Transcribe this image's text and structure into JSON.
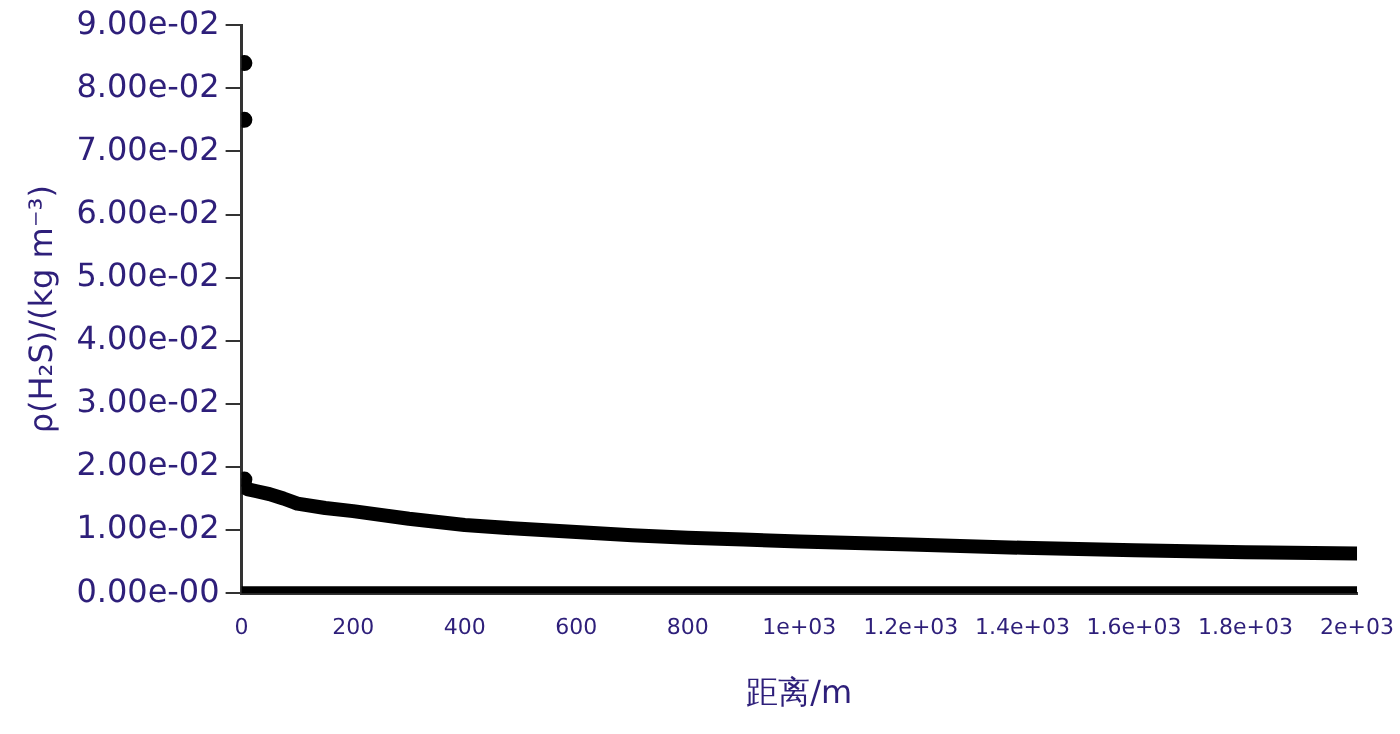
{
  "chart_data": {
    "type": "scatter",
    "xlabel": "距离/m",
    "ylabel": "ρ(H₂S)/(kg m⁻³)",
    "xlim": [
      0,
      2000
    ],
    "xticks": [
      0,
      200,
      400,
      600,
      800,
      {
        "value": 1000,
        "label": "1e+03"
      },
      {
        "value": 1200,
        "label": "1.2e+03"
      },
      {
        "value": 1400,
        "label": "1.4e+03"
      },
      {
        "value": 1600,
        "label": "1.6e+03"
      },
      {
        "value": 1800,
        "label": "1.8e+03"
      },
      {
        "value": 2000,
        "label": "2e+03"
      }
    ],
    "ylim": [
      0,
      0.09
    ],
    "yticks": [
      {
        "value": 0,
        "label": "0.00e-00"
      },
      {
        "value": 0.01,
        "label": "1.00e-02"
      },
      {
        "value": 0.02,
        "label": "2.00e-02"
      },
      {
        "value": 0.03,
        "label": "3.00e-02"
      },
      {
        "value": 0.04,
        "label": "4.00e-02"
      },
      {
        "value": 0.05,
        "label": "5.00e-02"
      },
      {
        "value": 0.06,
        "label": "6.00e-02"
      },
      {
        "value": 0.07,
        "label": "7.00e-02"
      },
      {
        "value": 0.08,
        "label": "8.00e-02"
      },
      {
        "value": 0.09,
        "label": "9.00e-02"
      }
    ],
    "grid": false,
    "legend": false,
    "marker": "circle",
    "series": [
      {
        "type": "line",
        "marker": "none",
        "line_style": "solid",
        "color": "#000000",
        "x": [
          0,
          5,
          10,
          25,
          50,
          75,
          100,
          150,
          200,
          300,
          400,
          500,
          600,
          700,
          800,
          900,
          1000,
          1200,
          1400,
          1600,
          1800,
          2000
        ],
        "values": [
          0.0168,
          0.0172,
          0.0165,
          0.0162,
          0.0157,
          0.015,
          0.0142,
          0.0135,
          0.013,
          0.0118,
          0.0108,
          0.0102,
          0.0097,
          0.0092,
          0.0088,
          0.0085,
          0.0082,
          0.0077,
          0.0072,
          0.0068,
          0.0065,
          0.0063
        ]
      },
      {
        "type": "line",
        "marker": "none",
        "line_style": "solid",
        "color": "#000000",
        "x": [
          0,
          2000
        ],
        "values": [
          0,
          0
        ]
      },
      {
        "type": "scatter",
        "color": "#000000",
        "x": [
          5,
          5,
          5
        ],
        "values": [
          0.084,
          0.075,
          0.018
        ]
      }
    ]
  }
}
